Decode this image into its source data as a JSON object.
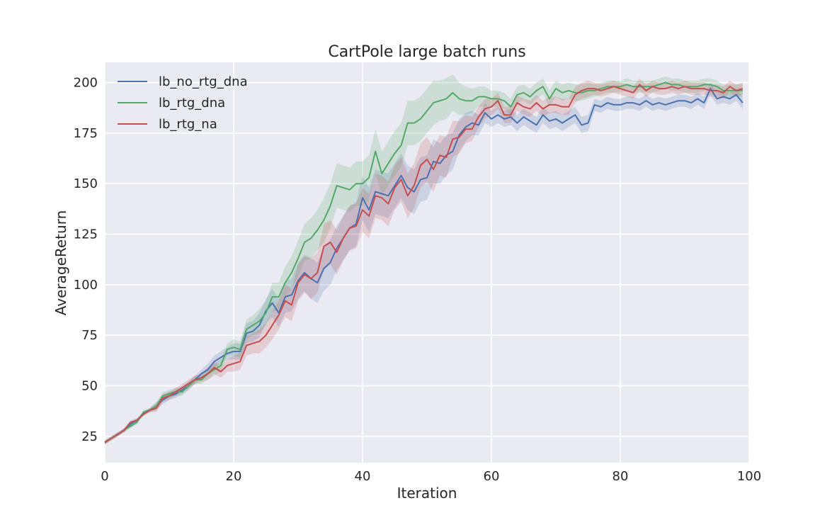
{
  "chart_data": {
    "type": "line",
    "title": "CartPole large batch runs",
    "xlabel": "Iteration",
    "ylabel": "AverageReturn",
    "xlim": [
      0,
      100
    ],
    "ylim": [
      12,
      210
    ],
    "xticks": [
      0,
      20,
      40,
      60,
      80,
      100
    ],
    "yticks": [
      25,
      50,
      75,
      100,
      125,
      150,
      175,
      200
    ],
    "grid": true,
    "legend_position": "top-left",
    "band_width": [
      1,
      1,
      1,
      1,
      1,
      1,
      1,
      1,
      2,
      2,
      2,
      2,
      2,
      2,
      2,
      2,
      3,
      3,
      3,
      3,
      4,
      4,
      5,
      5,
      6,
      6,
      7,
      7,
      8,
      8,
      9,
      9,
      10,
      10,
      11,
      11,
      11,
      11,
      11,
      11,
      11,
      11,
      11,
      11,
      11,
      11,
      11,
      11,
      11,
      11,
      11,
      11,
      10,
      10,
      9,
      8,
      7,
      6,
      5,
      5,
      4,
      4,
      4,
      4,
      4,
      4,
      4,
      4,
      4,
      4,
      4,
      4,
      4,
      4,
      4,
      4,
      3,
      3,
      3,
      3,
      3,
      3,
      3,
      3,
      3,
      3,
      3,
      3,
      3,
      3,
      3,
      3,
      3,
      3,
      3,
      3,
      3,
      3,
      3,
      3
    ],
    "series": [
      {
        "name": "lb_no_rtg_dna",
        "color": "#4c72b0",
        "values": [
          22,
          24,
          26,
          28,
          31,
          33,
          36,
          38,
          40,
          43,
          45,
          46,
          48,
          50,
          53,
          56,
          58,
          62,
          64,
          66,
          67,
          67,
          76,
          77,
          80,
          87,
          91,
          86,
          94,
          95,
          102,
          106,
          103,
          101,
          108,
          111,
          118,
          123,
          128,
          130,
          143,
          137,
          146,
          145,
          144,
          149,
          154,
          148,
          146,
          152,
          153,
          161,
          160,
          164,
          166,
          174,
          178,
          180,
          179,
          185,
          182,
          184,
          182,
          183,
          180,
          183,
          181,
          179,
          184,
          181,
          182,
          180,
          182,
          184,
          179,
          180,
          189,
          188,
          190,
          189,
          189,
          190,
          190,
          189,
          191,
          189,
          190,
          189,
          190,
          191,
          191,
          190,
          192,
          190,
          197,
          192,
          193,
          192,
          194,
          190
        ]
      },
      {
        "name": "lb_rtg_dna",
        "color": "#55a868",
        "values": [
          22,
          24,
          26,
          28,
          30,
          32,
          37,
          38,
          40,
          45,
          46,
          47,
          47,
          50,
          53,
          53,
          56,
          58,
          60,
          68,
          69,
          68,
          78,
          80,
          82,
          86,
          94,
          94,
          101,
          106,
          113,
          121,
          123,
          127,
          132,
          139,
          149,
          148,
          147,
          150,
          150,
          153,
          166,
          155,
          160,
          165,
          169,
          180,
          180,
          182,
          186,
          190,
          191,
          192,
          195,
          192,
          191,
          191,
          193,
          193,
          192,
          192,
          191,
          188,
          194,
          195,
          193,
          196,
          198,
          192,
          197,
          195,
          196,
          195,
          195,
          196,
          196,
          197,
          198,
          198,
          198,
          199,
          198,
          198,
          198,
          198,
          199,
          200,
          199,
          199,
          198,
          198,
          198,
          199,
          199,
          198,
          196,
          196,
          196,
          196
        ]
      },
      {
        "name": "lb_rtg_na",
        "color": "#c44e52",
        "values": [
          22,
          24,
          26,
          28,
          32,
          33,
          36,
          38,
          39,
          44,
          45,
          47,
          49,
          51,
          53,
          54,
          56,
          59,
          57,
          60,
          61,
          62,
          70,
          71,
          72,
          75,
          80,
          85,
          92,
          90,
          101,
          105,
          103,
          106,
          119,
          121,
          116,
          123,
          128,
          129,
          137,
          134,
          144,
          143,
          140,
          148,
          152,
          144,
          149,
          159,
          162,
          157,
          164,
          163,
          172,
          173,
          177,
          177,
          183,
          187,
          188,
          191,
          184,
          184,
          190,
          188,
          187,
          190,
          187,
          189,
          189,
          188,
          188,
          194,
          196,
          197,
          197,
          196,
          197,
          198,
          197,
          196,
          195,
          199,
          196,
          198,
          197,
          197,
          198,
          197,
          198,
          197,
          197,
          197,
          196,
          196,
          195,
          198,
          196,
          197
        ]
      }
    ]
  }
}
